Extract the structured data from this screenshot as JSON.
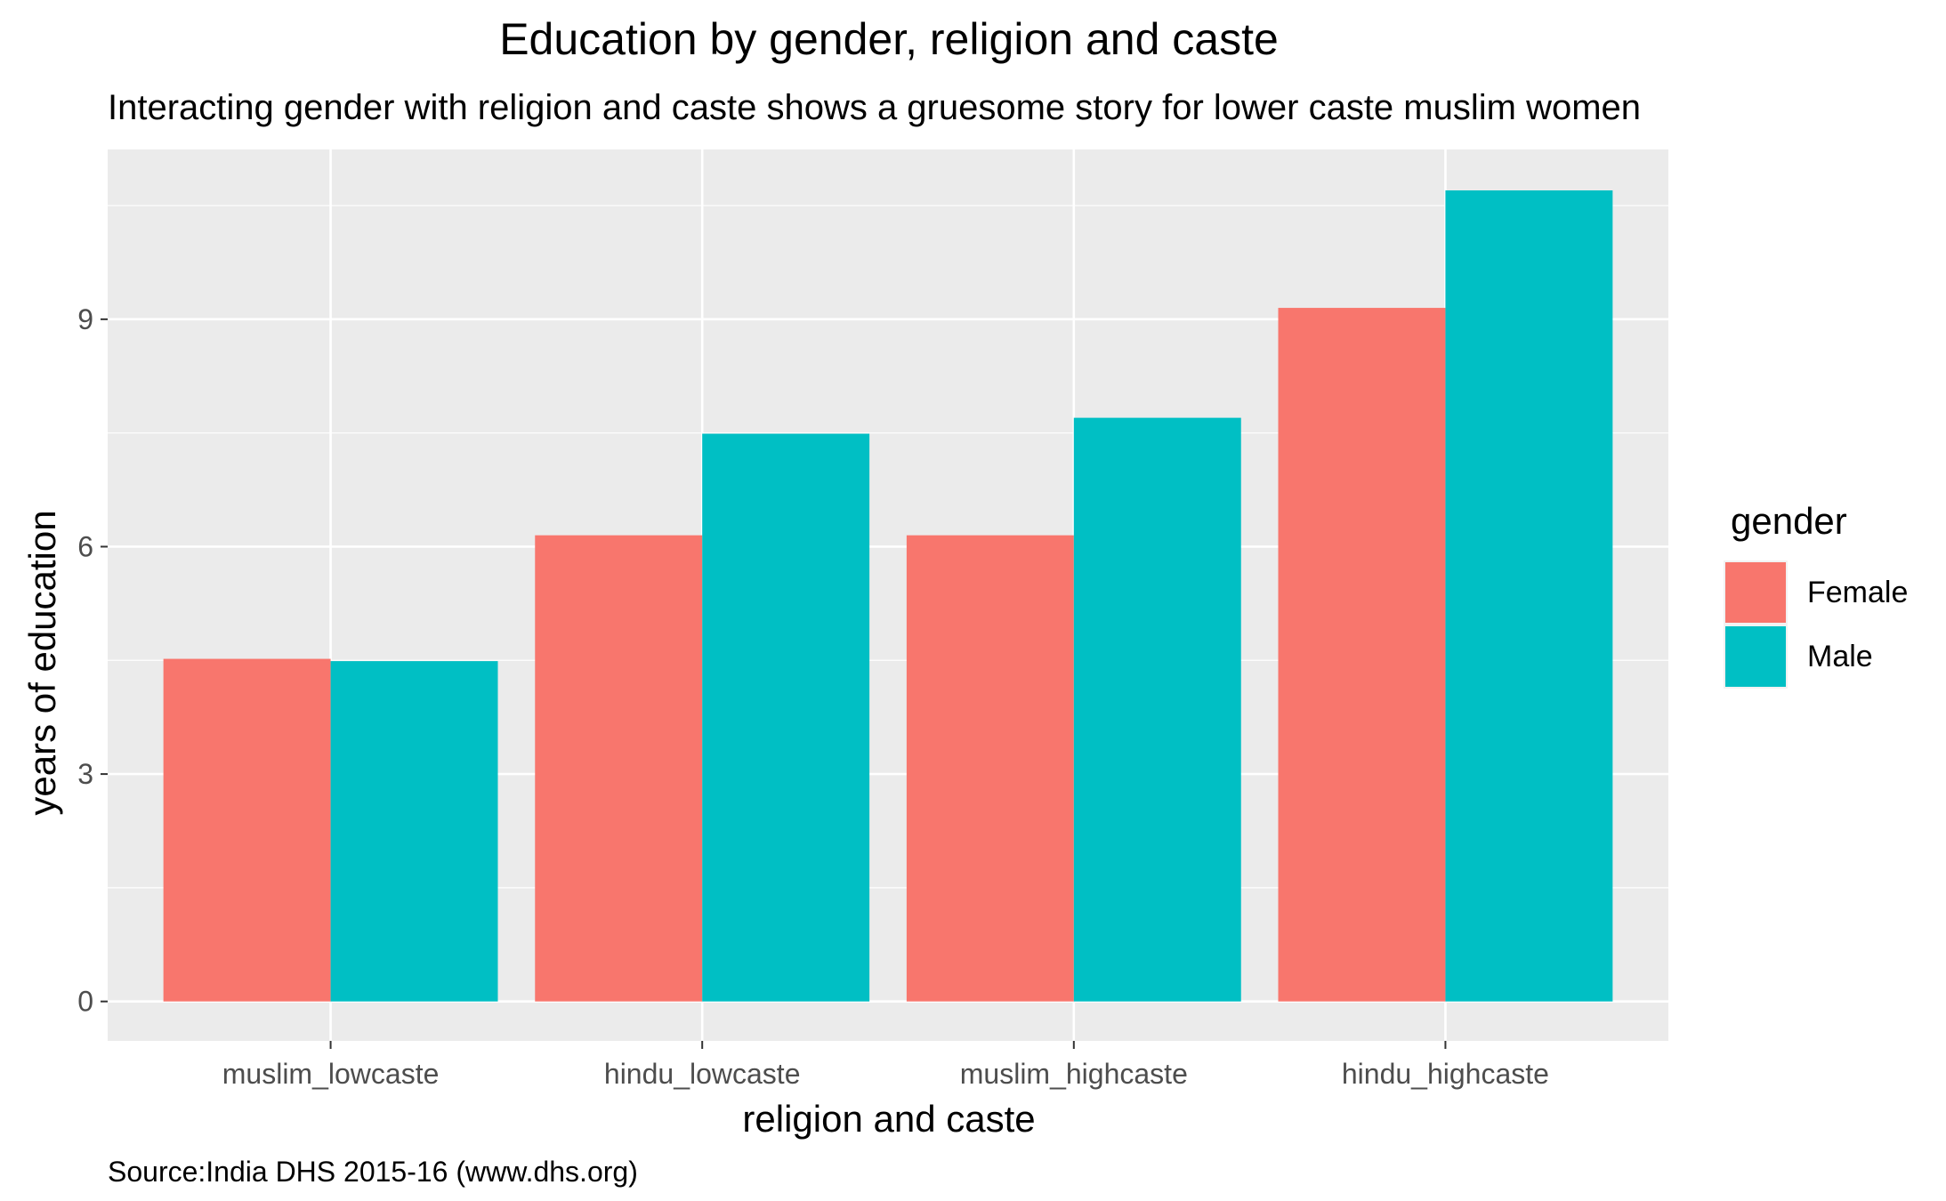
{
  "chart_data": {
    "type": "bar",
    "title": "Education by gender, religion and caste",
    "subtitle": "Interacting gender with religion and caste shows a gruesome story for lower caste muslim women",
    "xlabel": "religion and caste",
    "ylabel": "years of education",
    "caption": "Source:India DHS 2015-16 (www.dhs.org)",
    "categories": [
      "muslim_lowcaste",
      "hindu_lowcaste",
      "muslim_highcaste",
      "hindu_highcaste"
    ],
    "series": [
      {
        "name": "Female",
        "color": "#F8766D",
        "values": [
          4.52,
          6.15,
          6.15,
          9.15
        ]
      },
      {
        "name": "Male",
        "color": "#00BFC4",
        "values": [
          4.49,
          7.49,
          7.7,
          10.7
        ]
      }
    ],
    "ylim": [
      -0.52,
      11.24
    ],
    "yticks": [
      0,
      3,
      6,
      9
    ],
    "legend": {
      "title": "gender",
      "position": "right"
    },
    "grid": true,
    "panel_background": "#EBEBEB",
    "grid_color": "#FFFFFF"
  }
}
